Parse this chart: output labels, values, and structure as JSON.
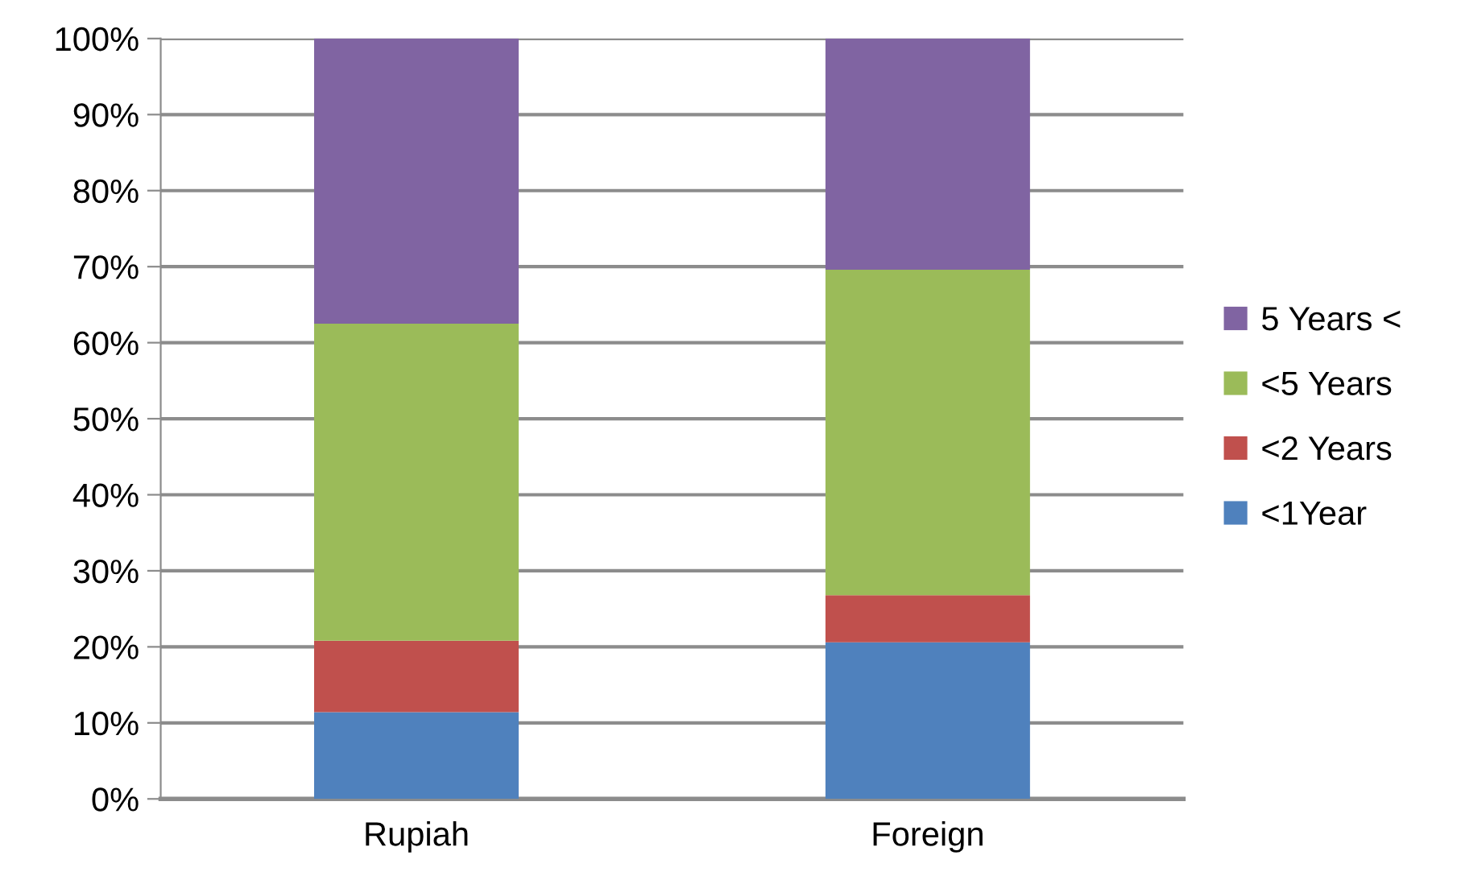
{
  "chart_data": {
    "type": "bar",
    "stacked": true,
    "categories": [
      "Rupiah",
      "Foreign"
    ],
    "series": [
      {
        "name": "<1Year",
        "color": "#4f81bd",
        "values": [
          11.4,
          20.6
        ]
      },
      {
        "name": "<2 Years",
        "color": "#c0504d",
        "values": [
          9.4,
          6.2
        ]
      },
      {
        "name": "<5 Years",
        "color": "#9bbb59",
        "values": [
          41.7,
          42.8
        ]
      },
      {
        "name": "5 Years <",
        "color": "#8064a2",
        "values": [
          37.5,
          30.4
        ]
      }
    ],
    "ylim": [
      0,
      100
    ],
    "yticks": [
      {
        "value": 0,
        "label": "0%"
      },
      {
        "value": 10,
        "label": "10%"
      },
      {
        "value": 20,
        "label": "20%"
      },
      {
        "value": 30,
        "label": "30%"
      },
      {
        "value": 40,
        "label": "40%"
      },
      {
        "value": 50,
        "label": "50%"
      },
      {
        "value": 60,
        "label": "60%"
      },
      {
        "value": 70,
        "label": "70%"
      },
      {
        "value": 80,
        "label": "80%"
      },
      {
        "value": 90,
        "label": "90%"
      },
      {
        "value": 100,
        "label": "100%"
      }
    ],
    "grid": "y",
    "legend": "right"
  }
}
